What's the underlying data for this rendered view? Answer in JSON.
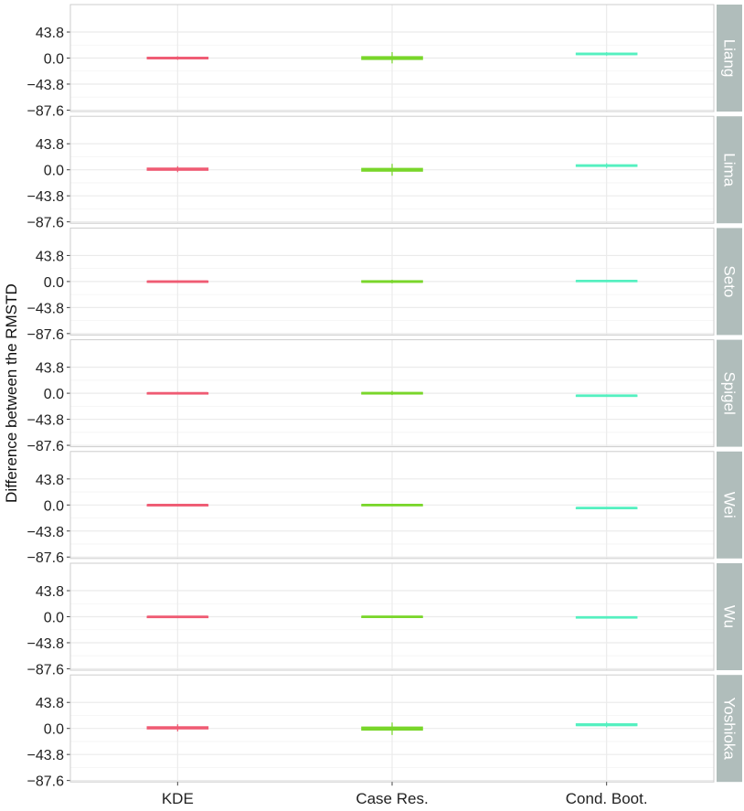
{
  "chart_data": {
    "type": "boxplot",
    "ylabel": "Difference between the RMSTD",
    "xlabel": "",
    "categories": [
      "KDE",
      "Case Res.",
      "Cond. Boot."
    ],
    "yticks": [
      43.8,
      0.0,
      -43.8,
      -87.6
    ],
    "ytick_labels": [
      "43.8",
      "0.0",
      "−43.8",
      "−87.6"
    ],
    "ylim": [
      -90,
      90
    ],
    "grid": true,
    "legend": "none",
    "colors": {
      "KDE": "#ef5b73",
      "Case Res.": "#79d62a",
      "Cond. Boot.": "#55f0c0",
      "strip_bg": "#b0bdbb",
      "strip_text": "#ffffff",
      "grid": "#ebebeb",
      "panel_border": "#cccccc"
    },
    "panels": [
      {
        "label": "Liang",
        "boxes": [
          {
            "category": "KDE",
            "median": 0.0,
            "q1": -1.0,
            "q3": 1.0,
            "lower": -3.0,
            "upper": 3.0
          },
          {
            "category": "Case Res.",
            "median": 0.0,
            "q1": -2.0,
            "q3": 2.0,
            "lower": -9.0,
            "upper": 10.0
          },
          {
            "category": "Cond. Boot.",
            "median": 7.0,
            "q1": 6.0,
            "q3": 8.0,
            "lower": 4.0,
            "upper": 10.0
          }
        ]
      },
      {
        "label": "Lima",
        "boxes": [
          {
            "category": "KDE",
            "median": 1.0,
            "q1": -0.5,
            "q3": 2.5,
            "lower": -4.0,
            "upper": 6.0
          },
          {
            "category": "Case Res.",
            "median": 0.0,
            "q1": -2.0,
            "q3": 2.0,
            "lower": -10.0,
            "upper": 10.0
          },
          {
            "category": "Cond. Boot.",
            "median": 7.0,
            "q1": 6.0,
            "q3": 8.0,
            "lower": 3.0,
            "upper": 11.0
          }
        ]
      },
      {
        "label": "Seto",
        "boxes": [
          {
            "category": "KDE",
            "median": 0.0,
            "q1": -0.5,
            "q3": 0.5,
            "lower": -2.0,
            "upper": 2.0
          },
          {
            "category": "Case Res.",
            "median": 0.0,
            "q1": -1.0,
            "q3": 1.0,
            "lower": -3.0,
            "upper": 3.0
          },
          {
            "category": "Cond. Boot.",
            "median": 1.0,
            "q1": 0.5,
            "q3": 1.5,
            "lower": -1.0,
            "upper": 3.0
          }
        ]
      },
      {
        "label": "Spigel",
        "boxes": [
          {
            "category": "KDE",
            "median": 0.0,
            "q1": -0.5,
            "q3": 0.5,
            "lower": -2.0,
            "upper": 2.0
          },
          {
            "category": "Case Res.",
            "median": 0.0,
            "q1": -1.0,
            "q3": 1.0,
            "lower": -3.0,
            "upper": 4.0
          },
          {
            "category": "Cond. Boot.",
            "median": -4.0,
            "q1": -4.5,
            "q3": -3.5,
            "lower": -6.0,
            "upper": -2.0
          }
        ]
      },
      {
        "label": "Wei",
        "boxes": [
          {
            "category": "KDE",
            "median": 0.0,
            "q1": -0.3,
            "q3": 0.3,
            "lower": -1.0,
            "upper": 1.0
          },
          {
            "category": "Case Res.",
            "median": 0.0,
            "q1": -0.5,
            "q3": 0.5,
            "lower": -1.5,
            "upper": 2.0
          },
          {
            "category": "Cond. Boot.",
            "median": -5.0,
            "q1": -5.5,
            "q3": -4.5,
            "lower": -6.5,
            "upper": -3.5
          }
        ]
      },
      {
        "label": "Wu",
        "boxes": [
          {
            "category": "KDE",
            "median": 0.0,
            "q1": -0.3,
            "q3": 0.3,
            "lower": -1.0,
            "upper": 1.0
          },
          {
            "category": "Case Res.",
            "median": 0.0,
            "q1": -0.5,
            "q3": 0.5,
            "lower": -1.5,
            "upper": 1.5
          },
          {
            "category": "Cond. Boot.",
            "median": -1.0,
            "q1": -1.5,
            "q3": -0.5,
            "lower": -2.5,
            "upper": 0.5
          }
        ]
      },
      {
        "label": "Yoshioka",
        "boxes": [
          {
            "category": "KDE",
            "median": 1.0,
            "q1": -0.5,
            "q3": 2.5,
            "lower": -5.0,
            "upper": 7.0
          },
          {
            "category": "Case Res.",
            "median": 0.0,
            "q1": -2.5,
            "q3": 2.0,
            "lower": -11.0,
            "upper": 10.0
          },
          {
            "category": "Cond. Boot.",
            "median": 6.0,
            "q1": 5.0,
            "q3": 7.5,
            "lower": 2.0,
            "upper": 11.0
          }
        ]
      }
    ]
  }
}
